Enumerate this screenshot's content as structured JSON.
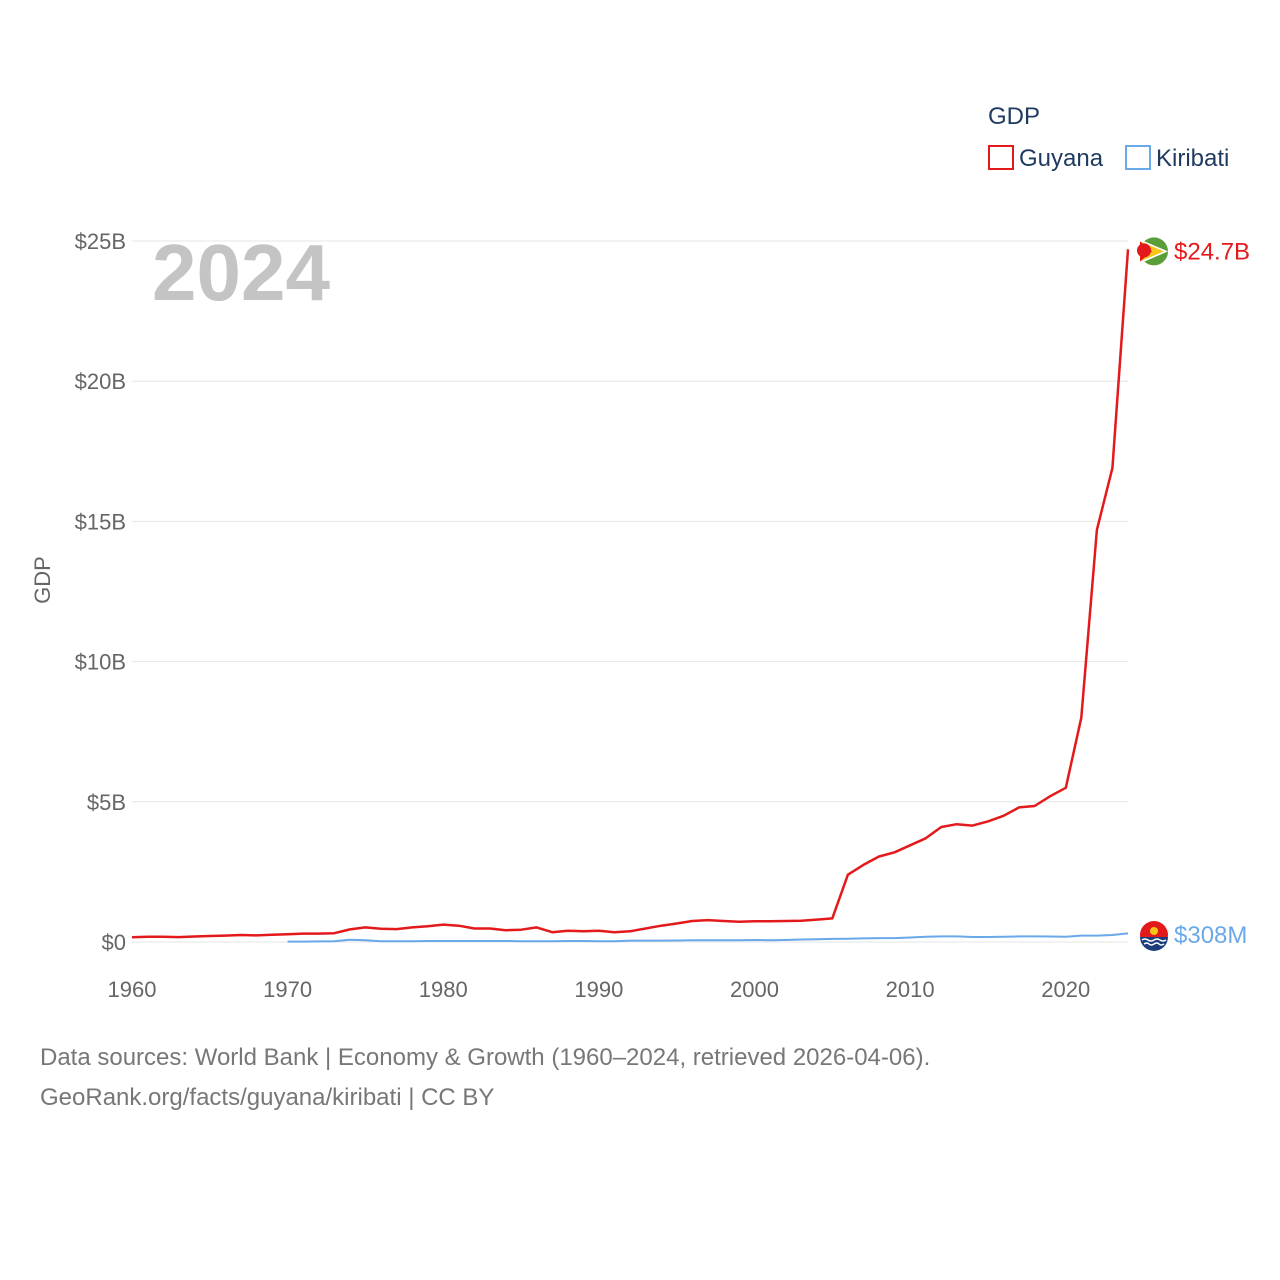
{
  "chart_data": {
    "type": "line",
    "title": "2024",
    "legend_title": "GDP",
    "ylabel": "GDP",
    "xlabel": "",
    "xlim": [
      1960,
      2024
    ],
    "ylim": [
      0,
      25000000000
    ],
    "x_ticks": [
      1960,
      1970,
      1980,
      1990,
      2000,
      2010,
      2020
    ],
    "y_ticks": [
      {
        "value": 0,
        "label": "$0"
      },
      {
        "value": 5000000000,
        "label": "$5B"
      },
      {
        "value": 10000000000,
        "label": "$10B"
      },
      {
        "value": 15000000000,
        "label": "$15B"
      },
      {
        "value": 20000000000,
        "label": "$20B"
      },
      {
        "value": 25000000000,
        "label": "$25B"
      }
    ],
    "series": [
      {
        "name": "Guyana",
        "color": "#e31a1c",
        "end_label": "$24.7B",
        "x": [
          1960,
          1961,
          1962,
          1963,
          1964,
          1965,
          1966,
          1967,
          1968,
          1969,
          1970,
          1971,
          1972,
          1973,
          1974,
          1975,
          1976,
          1977,
          1978,
          1979,
          1980,
          1981,
          1982,
          1983,
          1984,
          1985,
          1986,
          1987,
          1988,
          1989,
          1990,
          1991,
          1992,
          1993,
          1994,
          1995,
          1996,
          1997,
          1998,
          1999,
          2000,
          2001,
          2002,
          2003,
          2004,
          2005,
          2006,
          2007,
          2008,
          2009,
          2010,
          2011,
          2012,
          2013,
          2014,
          2015,
          2016,
          2017,
          2018,
          2019,
          2020,
          2021,
          2022,
          2023,
          2024
        ],
        "values": [
          170000000,
          185000000,
          190000000,
          175000000,
          195000000,
          215000000,
          230000000,
          250000000,
          235000000,
          255000000,
          275000000,
          300000000,
          300000000,
          315000000,
          450000000,
          520000000,
          470000000,
          460000000,
          520000000,
          560000000,
          620000000,
          580000000,
          480000000,
          480000000,
          420000000,
          440000000,
          520000000,
          350000000,
          400000000,
          380000000,
          400000000,
          350000000,
          380000000,
          480000000,
          580000000,
          660000000,
          750000000,
          780000000,
          750000000,
          720000000,
          740000000,
          740000000,
          750000000,
          760000000,
          800000000,
          840000000,
          2400000000,
          2750000000,
          3050000000,
          3200000000,
          3450000000,
          3700000000,
          4100000000,
          4200000000,
          4150000000,
          4300000000,
          4500000000,
          4800000000,
          4850000000,
          5200000000,
          5500000000,
          8000000000,
          14700000000,
          16900000000,
          24700000000
        ]
      },
      {
        "name": "Kiribati",
        "color": "#6aa9e9",
        "end_label": "$308M",
        "x": [
          1970,
          1971,
          1972,
          1973,
          1974,
          1975,
          1976,
          1977,
          1978,
          1979,
          1980,
          1981,
          1982,
          1983,
          1984,
          1985,
          1986,
          1987,
          1988,
          1989,
          1990,
          1991,
          1992,
          1993,
          1994,
          1995,
          1996,
          1997,
          1998,
          1999,
          2000,
          2001,
          2002,
          2003,
          2004,
          2005,
          2006,
          2007,
          2008,
          2009,
          2010,
          2011,
          2012,
          2013,
          2014,
          2015,
          2016,
          2017,
          2018,
          2019,
          2020,
          2021,
          2022,
          2023,
          2024
        ],
        "values": [
          15000000,
          15000000,
          20000000,
          25000000,
          80000000,
          60000000,
          25000000,
          25000000,
          30000000,
          35000000,
          35000000,
          35000000,
          35000000,
          35000000,
          35000000,
          30000000,
          30000000,
          30000000,
          35000000,
          35000000,
          30000000,
          30000000,
          50000000,
          50000000,
          50000000,
          55000000,
          60000000,
          60000000,
          60000000,
          65000000,
          70000000,
          60000000,
          70000000,
          90000000,
          100000000,
          110000000,
          115000000,
          130000000,
          140000000,
          140000000,
          160000000,
          190000000,
          200000000,
          200000000,
          180000000,
          180000000,
          190000000,
          200000000,
          200000000,
          195000000,
          190000000,
          230000000,
          230000000,
          250000000,
          308000000
        ]
      }
    ]
  },
  "footer": {
    "line1": "Data sources: World Bank | Economy & Growth (1960–2024, retrieved 2026-04-06).",
    "line2": "GeoRank.org/facts/guyana/kiribati | CC BY"
  }
}
